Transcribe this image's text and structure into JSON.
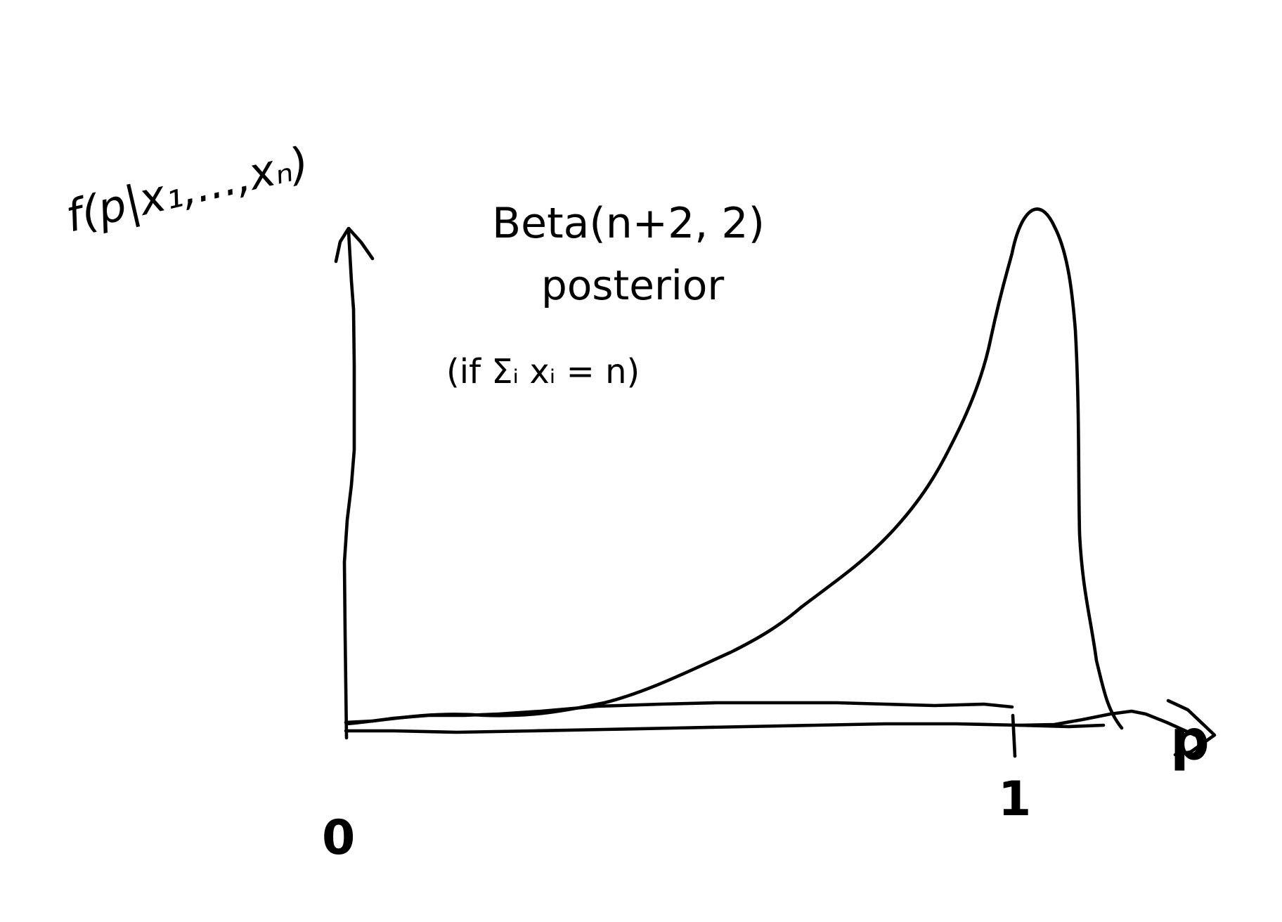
{
  "diagram": {
    "y_axis_label": "f(p|x₁,...,xₙ)",
    "x_axis_label": "p",
    "x_ticks": [
      "0",
      "1"
    ],
    "curve": {
      "name": "Beta(n+2, 2)",
      "description": "posterior",
      "condition": "(if Σᵢ xᵢ = n)"
    },
    "ink_color": "#000000",
    "background_color": "#ffffff"
  }
}
